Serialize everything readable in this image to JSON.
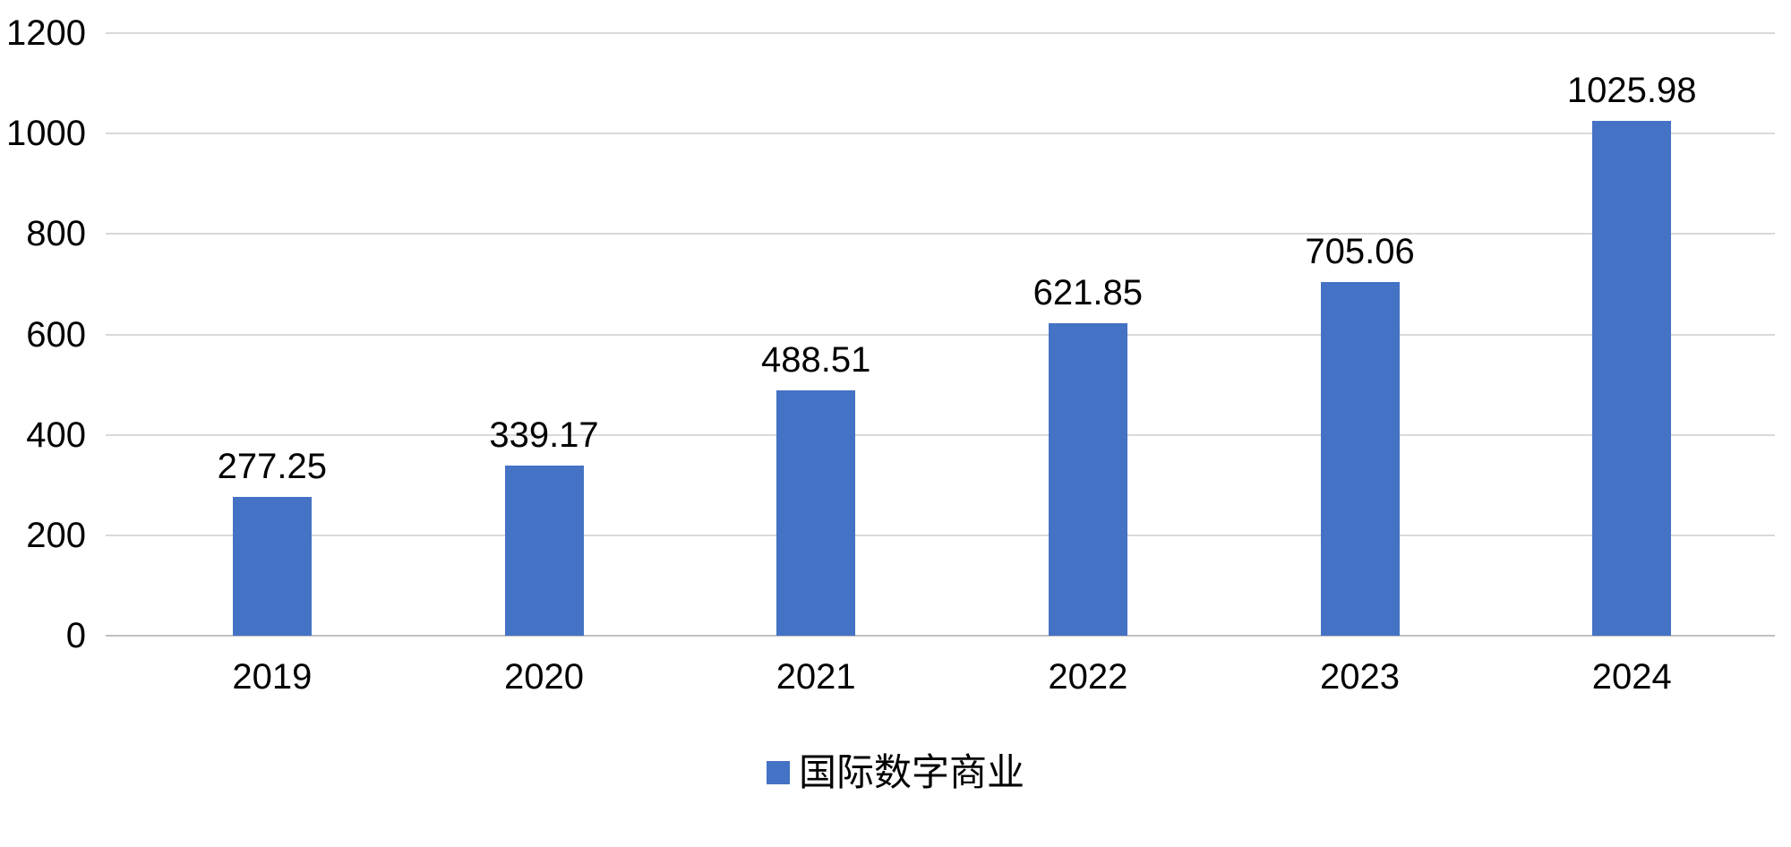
{
  "chart_data": {
    "type": "bar",
    "title": "",
    "xlabel": "",
    "ylabel": "",
    "categories": [
      "2019",
      "2020",
      "2021",
      "2022",
      "2023",
      "2024"
    ],
    "series": [
      {
        "name": "国际数字商业",
        "values": [
          277.25,
          339.17,
          488.51,
          621.85,
          705.06,
          1025.98
        ]
      }
    ],
    "series_name": "国际数字商业",
    "value_labels": [
      "277.25",
      "339.17",
      "488.51",
      "621.85",
      "705.06",
      "1025.98"
    ],
    "ylim": [
      0,
      1200
    ],
    "yticks": [
      0,
      200,
      400,
      600,
      800,
      1000,
      1200
    ],
    "grid": true,
    "legend_position": "bottom",
    "bar_color": "#4472C4",
    "gridline_color": "#D9D9D9",
    "zero_line_color": "#BFBFBF",
    "text_color": "#000000",
    "background_color": "#FFFFFF"
  }
}
